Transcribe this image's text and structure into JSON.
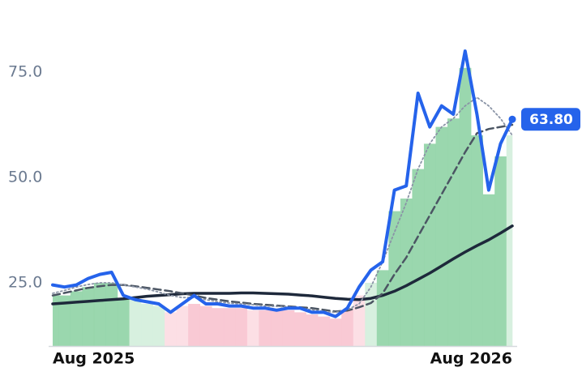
{
  "chart_data": {
    "type": "line",
    "categories": [
      "Aug 2025",
      null,
      null,
      null,
      null,
      null,
      null,
      null,
      null,
      null,
      null,
      null,
      null,
      null,
      null,
      null,
      null,
      null,
      null,
      null,
      null,
      null,
      null,
      null,
      null,
      null,
      null,
      null,
      null,
      null,
      null,
      null,
      null,
      null,
      null,
      null,
      null,
      null,
      null,
      "Aug 2026"
    ],
    "ylim": [
      10,
      85
    ],
    "yticks": [
      {
        "value": 25,
        "label": "25.0"
      },
      {
        "value": 50,
        "label": "50.0"
      },
      {
        "value": 75,
        "label": "75.0"
      }
    ],
    "bars": {
      "values": [
        22,
        22,
        23,
        24,
        25,
        25,
        21,
        21,
        20,
        19.5,
        18,
        19.5,
        20,
        19.5,
        19,
        19,
        19,
        18.5,
        18.5,
        18.5,
        18.5,
        18,
        17.5,
        17,
        16.5,
        18.5,
        22,
        25,
        28,
        42,
        45,
        52,
        58,
        62,
        64,
        76,
        60,
        46,
        55,
        60
      ],
      "colors": [
        "#8fd3a5",
        "#8fd3a5",
        "#8fd3a5",
        "#8fd3a5",
        "#8fd3a5",
        "#8fd3a5",
        "#8fd3a5",
        "#d3eedb",
        "#d3eedb",
        "#d3eedb",
        "#fcdbe2",
        "#fcdbe2",
        "#f8c3cf",
        "#f8c3cf",
        "#f8c3cf",
        "#f8c3cf",
        "#f8c3cf",
        "#fcdbe2",
        "#f8c3cf",
        "#f8c3cf",
        "#f8c3cf",
        "#f8c3cf",
        "#f8c3cf",
        "#f8c3cf",
        "#f8c3cf",
        "#f8c3cf",
        "#fcdbe2",
        "#d3eedb",
        "#8fd3a5",
        "#8fd3a5",
        "#8fd3a5",
        "#8fd3a5",
        "#8fd3a5",
        "#8fd3a5",
        "#8fd3a5",
        "#8fd3a5",
        "#8fd3a5",
        "#8fd3a5",
        "#8fd3a5",
        "#d3eedb"
      ]
    },
    "series": [
      {
        "color": "#1e293b",
        "style": "solid",
        "width": 3.5,
        "values": [
          20,
          20.2,
          20.4,
          20.6,
          20.8,
          21,
          21.2,
          21.5,
          21.8,
          22,
          22.2,
          22.4,
          22.5,
          22.5,
          22.5,
          22.5,
          22.6,
          22.6,
          22.5,
          22.4,
          22.3,
          22.1,
          21.9,
          21.6,
          21.3,
          21.1,
          21,
          21.3,
          22,
          23,
          24.3,
          25.8,
          27.3,
          29,
          30.7,
          32.3,
          33.8,
          35.2,
          36.8,
          38.5
        ]
      },
      {
        "color": "#4b5563",
        "style": "dashed",
        "width": 2.5,
        "values": [
          22,
          22.6,
          23.2,
          23.8,
          24.2,
          24.5,
          24.5,
          24.2,
          23.8,
          23.4,
          23,
          22.5,
          22,
          21.4,
          21,
          20.6,
          20.3,
          20,
          19.8,
          19.6,
          19.4,
          19.2,
          19,
          18.6,
          18.2,
          18.4,
          19.2,
          20.2,
          22.5,
          27,
          31,
          36,
          41,
          46,
          51,
          56,
          60.5,
          61.5,
          62,
          62.5
        ]
      },
      {
        "color": "#8a94a6",
        "style": "dotted",
        "width": 1.8,
        "values": [
          22.5,
          23.2,
          24,
          24.6,
          25,
          25,
          24.5,
          24,
          23.5,
          22.8,
          22,
          21.5,
          21.5,
          21,
          20.5,
          20.2,
          20,
          19.8,
          19.5,
          19.4,
          19.3,
          19,
          18.6,
          18.2,
          18,
          18.6,
          20,
          24,
          30,
          37,
          44,
          52,
          58,
          62,
          64,
          67,
          69,
          67,
          64,
          60
        ]
      },
      {
        "color": "#2563eb",
        "style": "solid",
        "width": 4,
        "values": [
          24.5,
          24,
          24.5,
          26,
          27,
          27.5,
          22,
          21,
          20.5,
          20,
          18,
          20,
          22,
          20,
          20,
          19.5,
          19.5,
          19,
          19,
          18.5,
          19,
          19,
          18,
          18,
          17,
          19,
          24,
          28,
          30,
          47,
          48,
          70,
          62,
          67,
          65,
          80,
          65,
          47,
          58,
          63.8
        ],
        "value_labels": [
          null,
          null,
          null,
          null,
          null,
          null,
          null,
          null,
          null,
          null,
          null,
          null,
          null,
          null,
          null,
          null,
          null,
          null,
          null,
          null,
          null,
          null,
          null,
          null,
          null,
          null,
          null,
          null,
          null,
          null,
          null,
          null,
          null,
          null,
          null,
          null,
          null,
          null,
          null,
          "63.80"
        ]
      }
    ]
  }
}
